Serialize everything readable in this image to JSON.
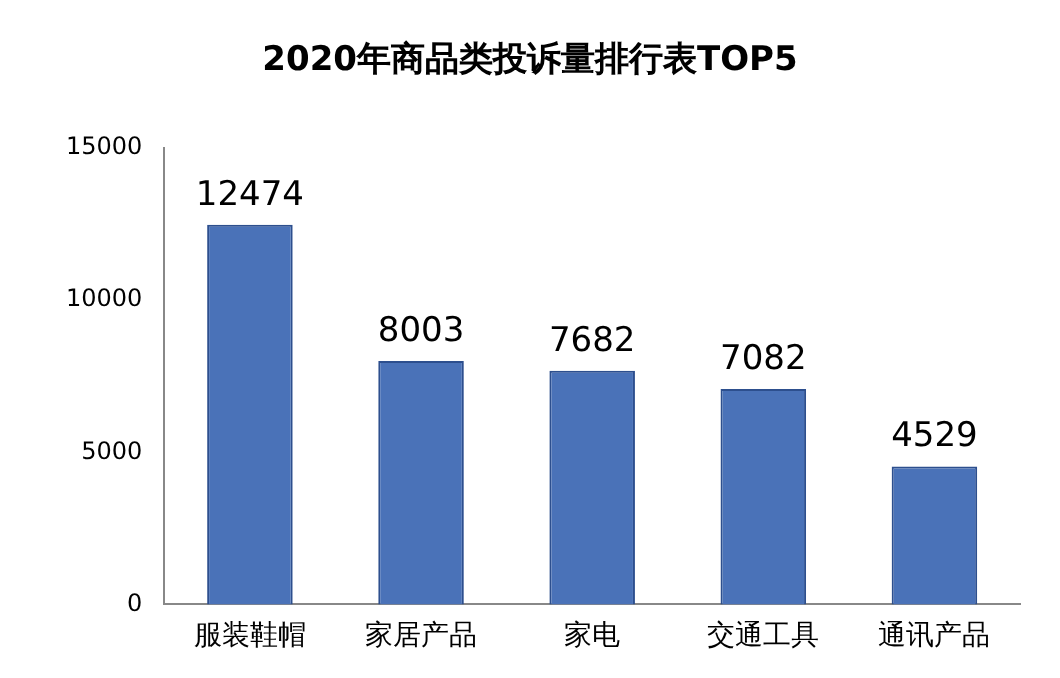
{
  "chart_data": {
    "type": "bar",
    "title": "2020年商品类投诉量排行表TOP5",
    "categories": [
      "服装鞋帽",
      "家居产品",
      "家电",
      "交通工具",
      "通讯产品"
    ],
    "values": [
      12474,
      8003,
      7682,
      7082,
      4529
    ],
    "color": "#4a72b8",
    "ylim": [
      0,
      15000
    ],
    "yticks": [
      0,
      5000,
      10000,
      15000
    ],
    "grid": false,
    "legend": false,
    "data_labels": true
  }
}
